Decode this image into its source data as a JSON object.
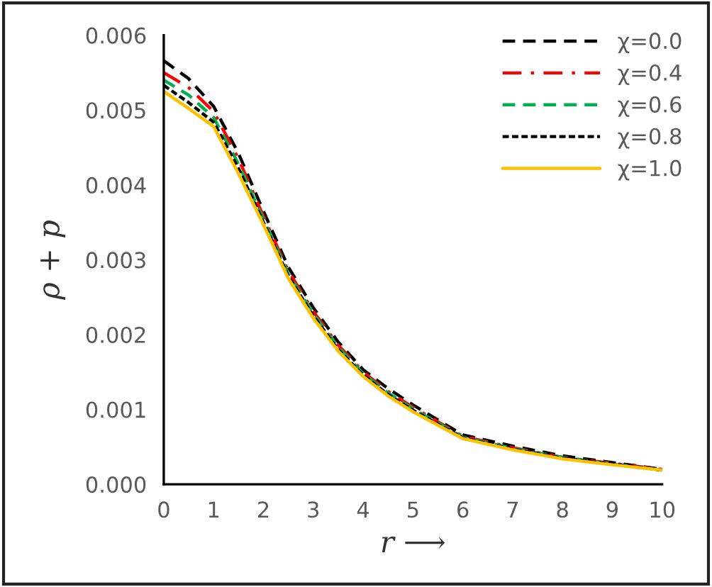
{
  "chart_data": {
    "type": "line",
    "xlabel": "r ⟶",
    "ylabel": "ρ + p",
    "x": [
      0,
      0.5,
      1,
      1.5,
      2,
      2.5,
      3,
      3.5,
      4,
      4.5,
      5,
      6,
      7,
      8,
      9,
      10
    ],
    "series": [
      {
        "name": "χ=0.0",
        "color": "#000000",
        "line_style": "dashed",
        "values": [
          0.00566,
          0.00542,
          0.00505,
          0.00442,
          0.00365,
          0.0029,
          0.00236,
          0.0019,
          0.00153,
          0.00128,
          0.00106,
          0.00066,
          0.00051,
          0.00038,
          0.00029,
          0.0002
        ]
      },
      {
        "name": "χ=0.4",
        "color": "#ff0000",
        "line_style": "dashdot",
        "values": [
          0.0055,
          0.0053,
          0.00498,
          0.00435,
          0.00358,
          0.00285,
          0.00231,
          0.00186,
          0.0015,
          0.00124,
          0.00103,
          0.00064,
          0.00049,
          0.00036,
          0.00028,
          0.0002
        ]
      },
      {
        "name": "χ=0.6",
        "color": "#00b050",
        "line_style": "dashed",
        "values": [
          0.0054,
          0.0052,
          0.0049,
          0.00428,
          0.00354,
          0.00281,
          0.00228,
          0.00183,
          0.00148,
          0.00122,
          0.00101,
          0.00063,
          0.00048,
          0.00036,
          0.00027,
          0.00019
        ]
      },
      {
        "name": "χ=0.8",
        "color": "#000000",
        "line_style": "dotted",
        "values": [
          0.00533,
          0.0051,
          0.00484,
          0.00422,
          0.0035,
          0.00278,
          0.00225,
          0.0018,
          0.00146,
          0.0012,
          0.00099,
          0.00062,
          0.00047,
          0.00035,
          0.00027,
          0.00019
        ]
      },
      {
        "name": "χ=1.0",
        "color": "#ffc000",
        "line_style": "solid",
        "values": [
          0.00525,
          0.00502,
          0.00478,
          0.00415,
          0.00347,
          0.00275,
          0.00222,
          0.00178,
          0.00144,
          0.00118,
          0.00097,
          0.00061,
          0.00046,
          0.00034,
          0.00026,
          0.00019
        ]
      }
    ],
    "xlim": [
      0,
      10
    ],
    "xticks": [
      0,
      1,
      2,
      3,
      4,
      5,
      6,
      7,
      8,
      9,
      10
    ],
    "ylim": [
      0,
      0.006
    ],
    "yticks": [
      {
        "value": 0,
        "label": "0.000"
      },
      {
        "value": 0.001,
        "label": "0.001"
      },
      {
        "value": 0.002,
        "label": "0.002"
      },
      {
        "value": 0.003,
        "label": "0.003"
      },
      {
        "value": 0.004,
        "label": "0.004"
      },
      {
        "value": 0.005,
        "label": "0.005"
      },
      {
        "value": 0.006,
        "label": "0.006"
      }
    ],
    "grid": false,
    "legend": "top right"
  }
}
